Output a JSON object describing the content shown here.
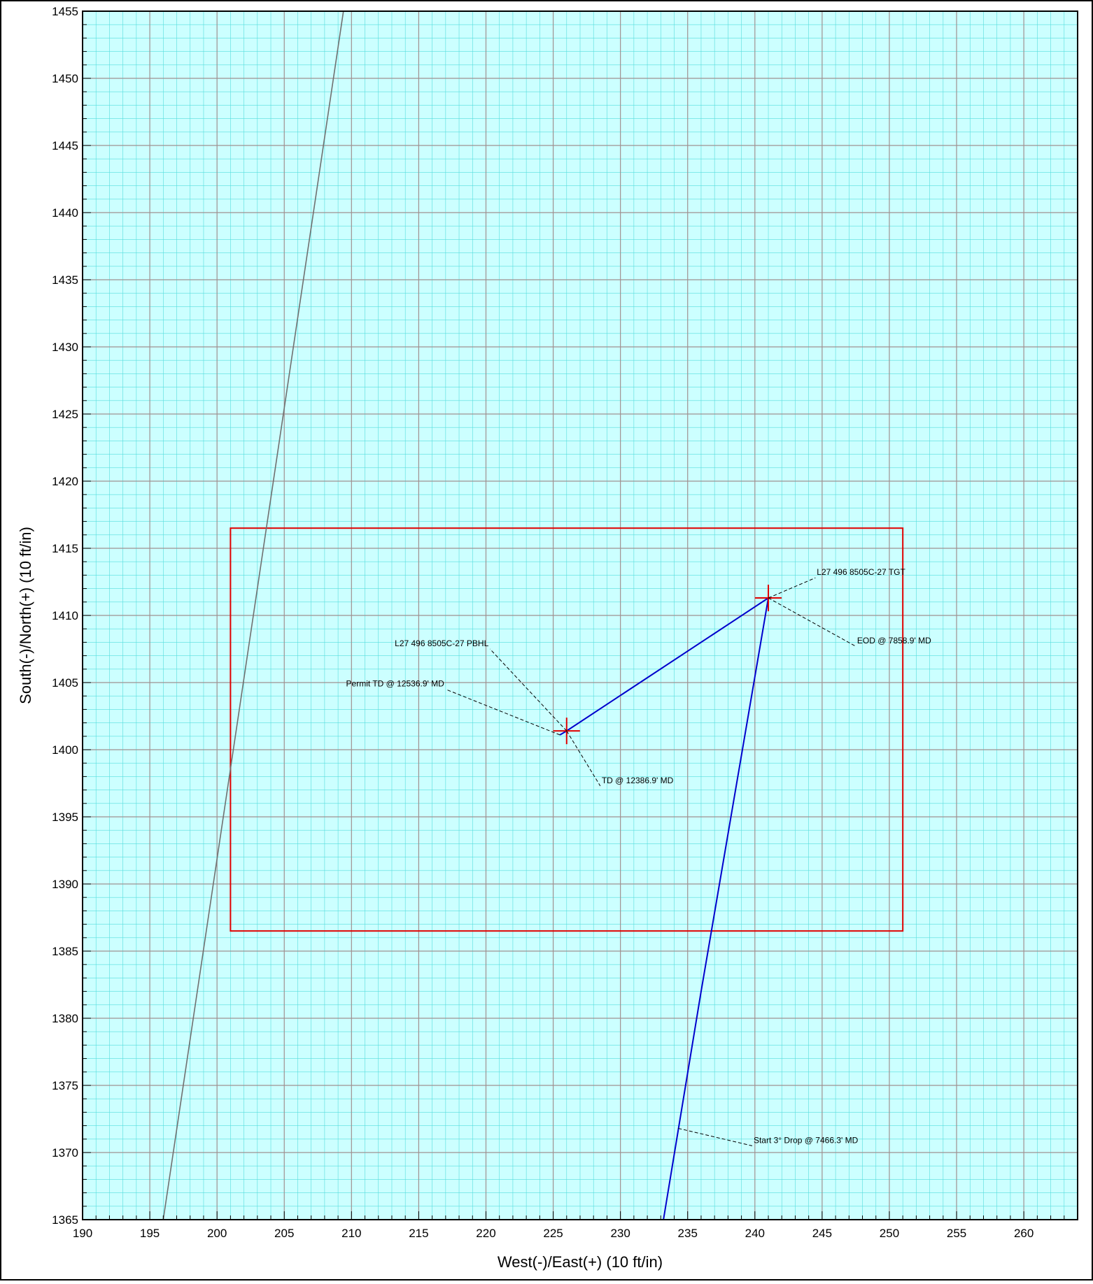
{
  "chart_data": {
    "type": "line",
    "xlabel": "West(-)/East(+) (10 ft/in)",
    "ylabel": "South(-)/North(+) (10 ft/in)",
    "xlim": [
      190,
      264
    ],
    "ylim": [
      1365,
      1455
    ],
    "x_ticks": [
      190,
      195,
      200,
      205,
      210,
      215,
      220,
      225,
      230,
      235,
      240,
      245,
      250,
      255,
      260
    ],
    "y_ticks": [
      1365,
      1370,
      1375,
      1380,
      1385,
      1390,
      1395,
      1400,
      1405,
      1410,
      1415,
      1420,
      1425,
      1430,
      1435,
      1440,
      1445,
      1450,
      1455
    ],
    "grid": true,
    "colors": {
      "background": "#ccffff",
      "minor_grid": "#55dddd",
      "major_grid": "#a09090",
      "well_path": "#0000cc",
      "offset_well": "#707070",
      "target_box": "#e00000",
      "target_marker": "#e00000"
    },
    "series": [
      {
        "values": [
          [
            233.2,
            1365
          ],
          [
            236.0,
            1382
          ],
          [
            241.0,
            1411.3
          ],
          [
            226.0,
            1401.4
          ],
          [
            225.5,
            1401.1
          ]
        ]
      },
      {
        "values": [
          [
            196.0,
            1365
          ],
          [
            209.4,
            1455
          ]
        ]
      }
    ],
    "target_box": {
      "x": [
        201,
        251
      ],
      "y": [
        1386.5,
        1416.5
      ]
    },
    "markers": [
      {
        "x": 241.0,
        "y": 1411.3
      },
      {
        "x": 226.0,
        "y": 1401.4
      }
    ],
    "annotations": [
      {
        "text": "L27 496 8505C-27 TGT",
        "point": [
          241.0,
          1411.3
        ],
        "label": [
          244.5,
          1412.8
        ]
      },
      {
        "text": "EOD @ 7858.9' MD",
        "point": [
          241.0,
          1411.3
        ],
        "label": [
          247.5,
          1407.7
        ]
      },
      {
        "text": "L27 496 8505C-27 PBHL",
        "point": [
          226.0,
          1401.4
        ],
        "label": [
          220.3,
          1407.5
        ]
      },
      {
        "text": "Permit TD @ 12536.9' MD",
        "point": [
          225.5,
          1401.1
        ],
        "label": [
          217.0,
          1404.5
        ]
      },
      {
        "text": "TD @ 12386.9' MD",
        "point": [
          226.0,
          1401.4
        ],
        "label": [
          228.5,
          1397.3
        ]
      },
      {
        "text": "Start 3° Drop @ 7466.3' MD",
        "point": [
          234.3,
          1371.8
        ],
        "label": [
          239.8,
          1370.5
        ]
      }
    ]
  }
}
